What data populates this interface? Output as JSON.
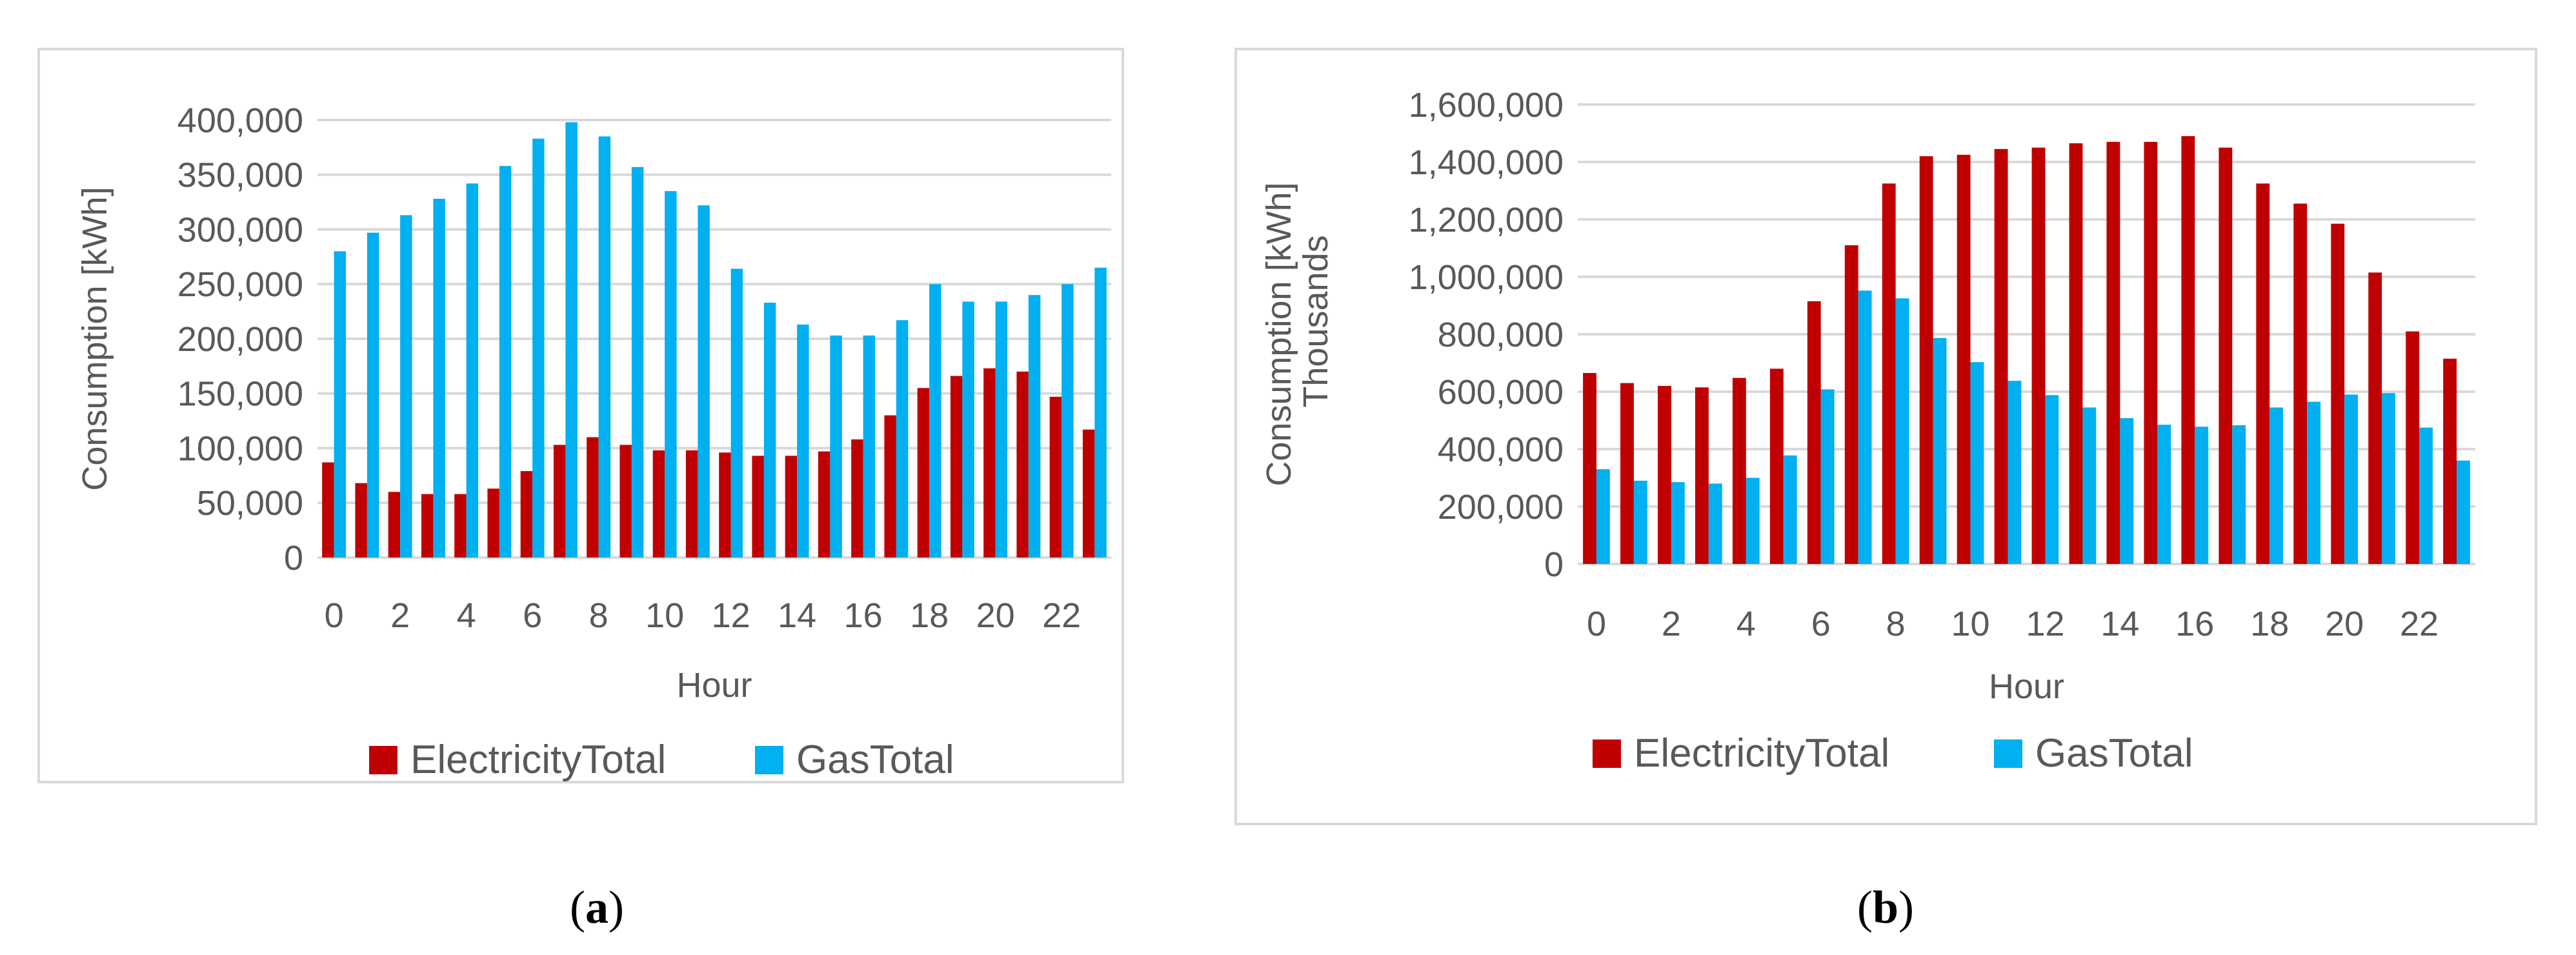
{
  "colors": {
    "electricity": "#C00000",
    "gas": "#00B0F0",
    "grid": "#D9D9D9",
    "text": "#595959",
    "frame": "#D9D9D9"
  },
  "chart_data": [
    {
      "type": "bar",
      "panel": "a",
      "caption": "a",
      "title": "",
      "xlabel": "Hour",
      "ylabel": "Consumption [kWh]",
      "ylabel2": "",
      "ylim": [
        0,
        400000
      ],
      "yticks": [
        0,
        50000,
        100000,
        150000,
        200000,
        250000,
        300000,
        350000,
        400000
      ],
      "ytick_labels": [
        "0",
        "50,000",
        "100,000",
        "150,000",
        "200,000",
        "250,000",
        "300,000",
        "350,000",
        "400,000"
      ],
      "categories": [
        0,
        1,
        2,
        3,
        4,
        5,
        6,
        7,
        8,
        9,
        10,
        11,
        12,
        13,
        14,
        15,
        16,
        17,
        18,
        19,
        20,
        21,
        22,
        23
      ],
      "xtick_labels": [
        "0",
        "2",
        "4",
        "6",
        "8",
        "10",
        "12",
        "14",
        "16",
        "18",
        "20",
        "22"
      ],
      "grid": true,
      "legend_position": "bottom",
      "series": [
        {
          "name": "ElectricityTotal",
          "values": [
            87000,
            68000,
            60000,
            58000,
            58000,
            63000,
            79000,
            103000,
            110000,
            103000,
            98000,
            98000,
            96000,
            93000,
            93000,
            97000,
            108000,
            130000,
            155000,
            166000,
            173000,
            170000,
            147000,
            117000
          ]
        },
        {
          "name": "GasTotal",
          "values": [
            280000,
            297000,
            313000,
            328000,
            342000,
            358000,
            383000,
            398000,
            385000,
            357000,
            335000,
            322000,
            264000,
            233000,
            213000,
            203000,
            203000,
            217000,
            250000,
            234000,
            234000,
            240000,
            250000,
            265000
          ]
        }
      ]
    },
    {
      "type": "bar",
      "panel": "b",
      "caption": "b",
      "title": "",
      "xlabel": "Hour",
      "ylabel": "Consumption [kWh]",
      "ylabel2": "Thousands",
      "ylim": [
        0,
        1600000
      ],
      "yticks": [
        0,
        200000,
        400000,
        600000,
        800000,
        1000000,
        1200000,
        1400000,
        1600000
      ],
      "ytick_labels": [
        "0",
        "200,000",
        "400,000",
        "600,000",
        "800,000",
        "1,000,000",
        "1,200,000",
        "1,400,000",
        "1,600,000"
      ],
      "categories": [
        0,
        1,
        2,
        3,
        4,
        5,
        6,
        7,
        8,
        9,
        10,
        11,
        12,
        13,
        14,
        15,
        16,
        17,
        18,
        19,
        20,
        21,
        22,
        23
      ],
      "xtick_labels": [
        "0",
        "2",
        "4",
        "6",
        "8",
        "10",
        "12",
        "14",
        "16",
        "18",
        "20",
        "22"
      ],
      "grid": true,
      "legend_position": "bottom",
      "series": [
        {
          "name": "ElectricityTotal",
          "values": [
            665000,
            630000,
            620000,
            615000,
            648000,
            680000,
            915000,
            1110000,
            1325000,
            1420000,
            1425000,
            1445000,
            1450000,
            1465000,
            1470000,
            1470000,
            1490000,
            1450000,
            1325000,
            1255000,
            1185000,
            1015000,
            810000,
            715000
          ]
        },
        {
          "name": "GasTotal",
          "values": [
            330000,
            290000,
            285000,
            280000,
            300000,
            378000,
            608000,
            952000,
            925000,
            787000,
            703000,
            638000,
            588000,
            545000,
            508000,
            485000,
            478000,
            483000,
            545000,
            565000,
            590000,
            595000,
            475000,
            360000
          ]
        }
      ]
    }
  ]
}
